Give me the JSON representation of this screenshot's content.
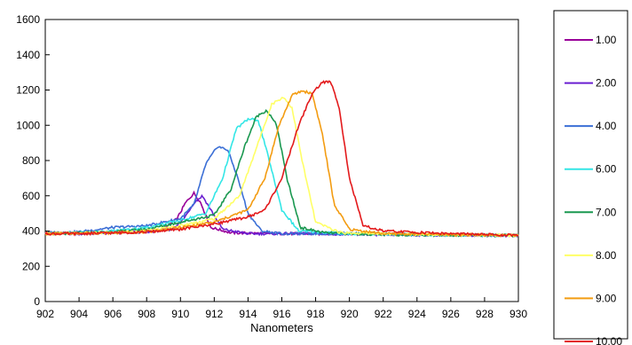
{
  "chart_data": {
    "type": "line",
    "title": "",
    "xlabel": "Nanometers",
    "ylabel": "",
    "xlim": [
      902,
      930
    ],
    "ylim": [
      0,
      1600
    ],
    "x_ticks": [
      902,
      904,
      906,
      908,
      910,
      912,
      914,
      916,
      918,
      920,
      922,
      924,
      926,
      928,
      930
    ],
    "y_ticks": [
      0,
      200,
      400,
      600,
      800,
      1000,
      1200,
      1400,
      1600
    ],
    "grid": false,
    "legend_position": "right",
    "series": [
      {
        "name": "1.00",
        "color": "#990099",
        "x": [
          902,
          904,
          906,
          908,
          909,
          909.8,
          910.3,
          910.8,
          911.2,
          911.8,
          913,
          916,
          920,
          924,
          930
        ],
        "y": [
          390,
          385,
          390,
          395,
          410,
          470,
          560,
          615,
          560,
          420,
          390,
          385,
          385,
          380,
          375
        ]
      },
      {
        "name": "2.00",
        "color": "#6a1fd1",
        "x": [
          902,
          904,
          906,
          908,
          909.5,
          910.2,
          910.8,
          911.3,
          911.8,
          912.5,
          914,
          918,
          922,
          930
        ],
        "y": [
          390,
          385,
          390,
          395,
          410,
          470,
          560,
          600,
          520,
          410,
          385,
          385,
          380,
          375
        ]
      },
      {
        "name": "4.00",
        "color": "#3b6fd6",
        "x": [
          902,
          904,
          906,
          908,
          909,
          910,
          910.8,
          911.5,
          912.2,
          912.8,
          913.4,
          914,
          914.8,
          916,
          920,
          924,
          930
        ],
        "y": [
          390,
          395,
          420,
          430,
          450,
          470,
          550,
          780,
          880,
          860,
          700,
          500,
          400,
          385,
          385,
          380,
          375
        ]
      },
      {
        "name": "6.00",
        "color": "#33e6e6",
        "x": [
          902,
          904,
          906,
          908,
          910,
          911.5,
          912.5,
          913.3,
          914,
          914.6,
          915.2,
          916,
          917,
          920,
          924,
          930
        ],
        "y": [
          385,
          390,
          400,
          420,
          460,
          500,
          700,
          980,
          1035,
          1030,
          820,
          520,
          400,
          385,
          380,
          375
        ]
      },
      {
        "name": "7.00",
        "color": "#1a9850",
        "x": [
          902,
          904,
          906,
          908,
          910,
          912,
          913,
          913.8,
          914.5,
          915.1,
          915.7,
          916.3,
          917.1,
          918.5,
          922,
          930
        ],
        "y": [
          385,
          388,
          395,
          410,
          450,
          490,
          640,
          880,
          1050,
          1085,
          1000,
          700,
          420,
          390,
          380,
          375
        ]
      },
      {
        "name": "8.00",
        "color": "#ffff66",
        "x": [
          902,
          904,
          906,
          908,
          910,
          912,
          913.5,
          914.6,
          915.4,
          916.1,
          916.6,
          917.2,
          918,
          919.5,
          922,
          930
        ],
        "y": [
          385,
          388,
          390,
          400,
          430,
          470,
          600,
          900,
          1120,
          1160,
          1100,
          800,
          450,
          390,
          385,
          375
        ]
      },
      {
        "name": "9.00",
        "color": "#f39c12",
        "x": [
          902,
          904,
          906,
          908,
          910,
          912,
          914,
          915,
          915.8,
          916.6,
          917.2,
          917.8,
          918.4,
          919.1,
          920,
          922,
          930
        ],
        "y": [
          385,
          388,
          390,
          395,
          420,
          450,
          520,
          700,
          990,
          1170,
          1195,
          1180,
          950,
          550,
          410,
          385,
          375
        ]
      },
      {
        "name": "10.00",
        "color": "#e31a1c",
        "x": [
          902,
          904,
          906,
          908,
          910,
          912,
          914,
          915,
          916,
          917,
          917.8,
          918.4,
          918.9,
          919.4,
          920,
          920.8,
          922,
          926,
          930
        ],
        "y": [
          385,
          385,
          390,
          395,
          410,
          440,
          480,
          520,
          700,
          1000,
          1180,
          1245,
          1245,
          1100,
          700,
          430,
          400,
          385,
          375
        ]
      }
    ]
  }
}
